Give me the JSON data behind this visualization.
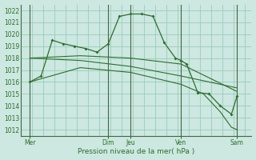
{
  "background_color": "#cce8e0",
  "grid_color": "#99ccbb",
  "line_color": "#2d6e2d",
  "title": "Pression niveau de la mer( hPa )",
  "ylim": [
    1011.5,
    1022.5
  ],
  "yticks": [
    1012,
    1013,
    1014,
    1015,
    1016,
    1017,
    1018,
    1019,
    1020,
    1021,
    1022
  ],
  "xlim": [
    -0.3,
    20.3
  ],
  "x_tick_positions": [
    0.5,
    7.5,
    9.5,
    14.0,
    19.0
  ],
  "x_tick_labels": [
    "Mer",
    "Dim",
    "Jeu",
    "Ven",
    "Sam"
  ],
  "vline_positions": [
    0.5,
    7.5,
    9.5,
    14.0,
    19.0
  ],
  "lines": [
    {
      "x": [
        0.5,
        1.5,
        2.5,
        3.5,
        4.5,
        5.5,
        6.5,
        7.5,
        8.5,
        9.5,
        10.5,
        11.5,
        12.5,
        13.5,
        14.0,
        14.5,
        15.5,
        16.5,
        17.5,
        18.5,
        19.0
      ],
      "y": [
        1016.0,
        1016.5,
        1019.5,
        1019.2,
        1019.0,
        1018.8,
        1018.5,
        1019.2,
        1021.5,
        1021.7,
        1021.7,
        1021.5,
        1019.3,
        1018.0,
        1017.8,
        1017.5,
        1015.1,
        1015.0,
        1014.0,
        1013.3,
        1014.8
      ],
      "marker": true
    },
    {
      "x": [
        0.5,
        5.0,
        9.5,
        14.0,
        19.0
      ],
      "y": [
        1018.0,
        1018.2,
        1018.0,
        1017.5,
        1015.2
      ],
      "marker": false
    },
    {
      "x": [
        0.5,
        5.0,
        9.5,
        14.0,
        19.0
      ],
      "y": [
        1018.0,
        1017.8,
        1017.3,
        1016.5,
        1015.5
      ],
      "marker": false
    },
    {
      "x": [
        0.5,
        5.0,
        9.5,
        14.0,
        16.0,
        17.5,
        18.5,
        19.0
      ],
      "y": [
        1016.0,
        1017.2,
        1016.8,
        1015.8,
        1015.0,
        1013.5,
        1012.2,
        1012.0
      ],
      "marker": false
    }
  ]
}
